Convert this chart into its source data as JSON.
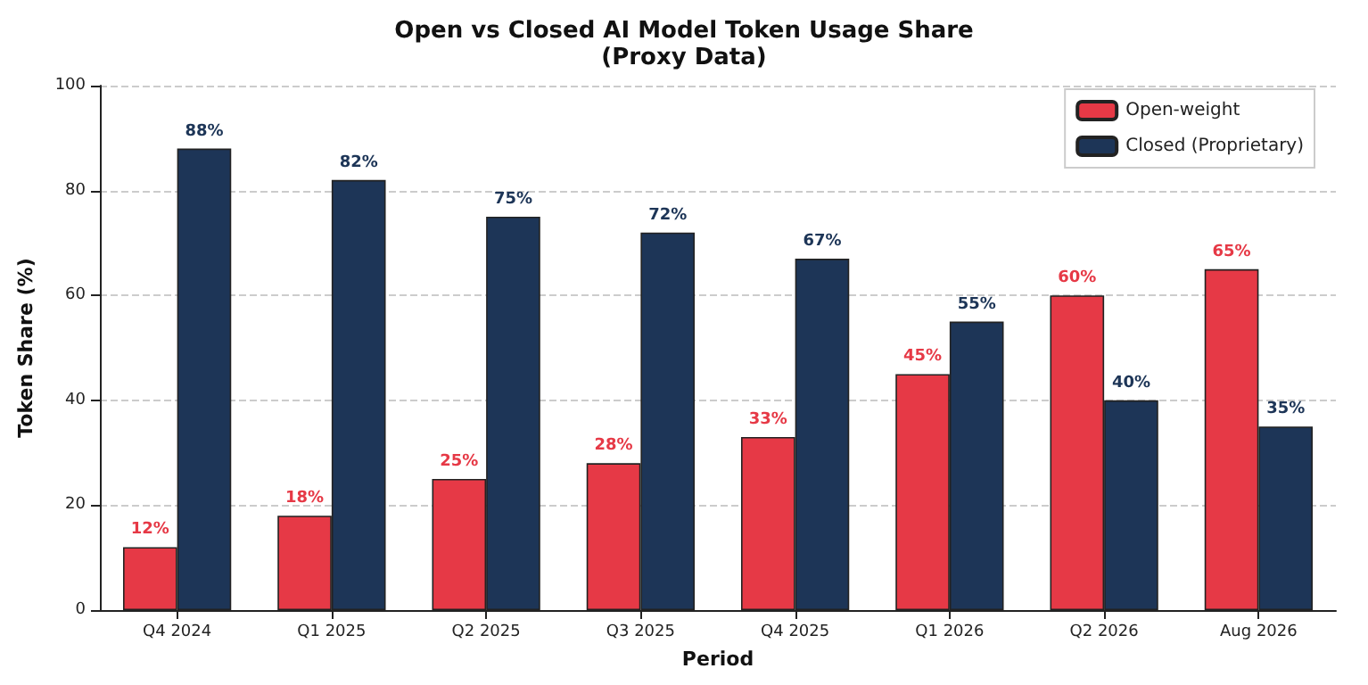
{
  "chart_data": {
    "type": "bar",
    "title": "Open vs Closed AI Model Token Usage Share",
    "subtitle": "(Proxy Data)",
    "xlabel": "Period",
    "ylabel": "Token Share (%)",
    "categories": [
      "Q4 2024",
      "Q1 2025",
      "Q2 2025",
      "Q3 2025",
      "Q4 2025",
      "Q1 2026",
      "Q2 2026",
      "Aug 2026"
    ],
    "series": [
      {
        "name": "Open-weight",
        "color": "#e63946",
        "values": [
          12,
          18,
          25,
          28,
          33,
          45,
          60,
          65
        ],
        "value_labels": [
          "12%",
          "18%",
          "25%",
          "28%",
          "33%",
          "45%",
          "60%",
          "65%"
        ]
      },
      {
        "name": "Closed (Proprietary)",
        "color": "#1d3557",
        "values": [
          88,
          82,
          75,
          72,
          67,
          55,
          40,
          35
        ],
        "value_labels": [
          "88%",
          "82%",
          "75%",
          "72%",
          "67%",
          "55%",
          "40%",
          "35%"
        ]
      }
    ],
    "ylim": [
      0,
      100
    ],
    "yticks": [
      0,
      20,
      40,
      60,
      80,
      100
    ],
    "grid": "y",
    "legend": "top right"
  }
}
